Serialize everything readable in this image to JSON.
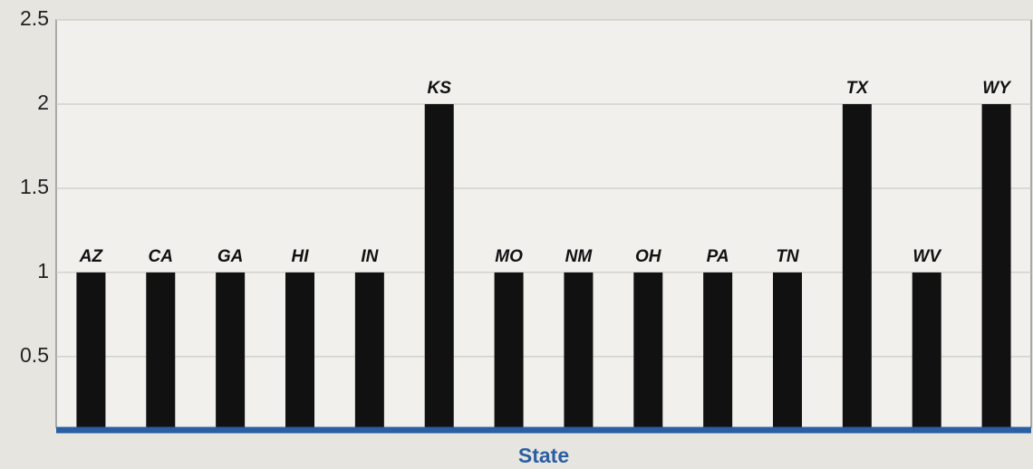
{
  "chart_data": {
    "type": "bar",
    "x_label": "State",
    "categories": [
      "AZ",
      "CA",
      "GA",
      "HI",
      "IN",
      "KS",
      "MO",
      "NM",
      "OH",
      "PA",
      "TN",
      "TX",
      "WV",
      "WY"
    ],
    "values": [
      1,
      1,
      1,
      1,
      1,
      2,
      1,
      1,
      1,
      1,
      1,
      2,
      1,
      2
    ],
    "color": "#111111",
    "ylim": [
      0.08,
      2.5
    ],
    "yticks": [
      0.5,
      1,
      1.5,
      2,
      2.5
    ],
    "grid": true
  }
}
